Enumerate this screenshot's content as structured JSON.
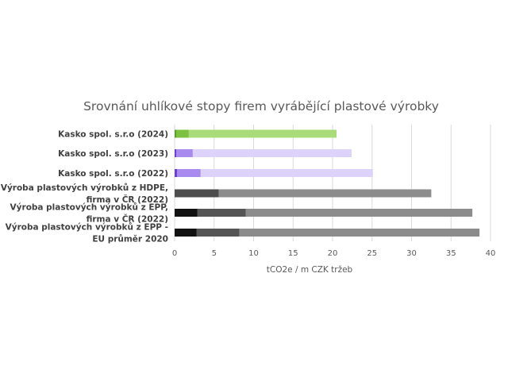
{
  "chart_data": {
    "type": "bar",
    "orientation": "horizontal",
    "stacked": true,
    "title": "Srovnání uhlíkové stopy firem vyrábějící plastové výrobky",
    "xlabel": "tCO2e / m CZK tržeb",
    "ylabel": "",
    "xlim": [
      0,
      40
    ],
    "xticks": [
      0,
      5,
      10,
      15,
      20,
      25,
      30,
      35,
      40
    ],
    "grid": true,
    "legend": "none",
    "categories": [
      [
        "Kasko spol. s.r.o (2024)"
      ],
      [
        "Kasko spol. s.r.o (2023)"
      ],
      [
        "Kasko spol. s.r.o (2022)"
      ],
      [
        "Výroba plastových výrobků z HDPE,",
        "firma v ČR (2022)"
      ],
      [
        "Výroba plastových výrobků z EPP,",
        "firma v ČR (2022)"
      ],
      [
        "Výroba plastových výrobků z EPP -",
        "EU průměr 2020"
      ]
    ],
    "segments": [
      [
        {
          "value": 0.2,
          "color": "#5b9e2a"
        },
        {
          "value": 1.6,
          "color": "#7cc142"
        },
        {
          "value": 18.7,
          "color": "#a9dc78"
        }
      ],
      [
        {
          "value": 0.2,
          "color": "#6a3fd0"
        },
        {
          "value": 2.1,
          "color": "#a98bef"
        },
        {
          "value": 20.1,
          "color": "#dcd2fa"
        }
      ],
      [
        {
          "value": 0.3,
          "color": "#6a3fd0"
        },
        {
          "value": 3.0,
          "color": "#a98bef"
        },
        {
          "value": 21.8,
          "color": "#dcd2fa"
        }
      ],
      [
        {
          "value": 5.6,
          "color": "#4d4d4d"
        },
        {
          "value": 26.9,
          "color": "#8c8c8c"
        }
      ],
      [
        {
          "value": 2.9,
          "color": "#111111"
        },
        {
          "value": 6.1,
          "color": "#555555"
        },
        {
          "value": 28.7,
          "color": "#8c8c8c"
        }
      ],
      [
        {
          "value": 2.8,
          "color": "#111111"
        },
        {
          "value": 5.4,
          "color": "#555555"
        },
        {
          "value": 30.4,
          "color": "#8c8c8c"
        }
      ]
    ],
    "gridline_color": "#d9d9d9"
  }
}
